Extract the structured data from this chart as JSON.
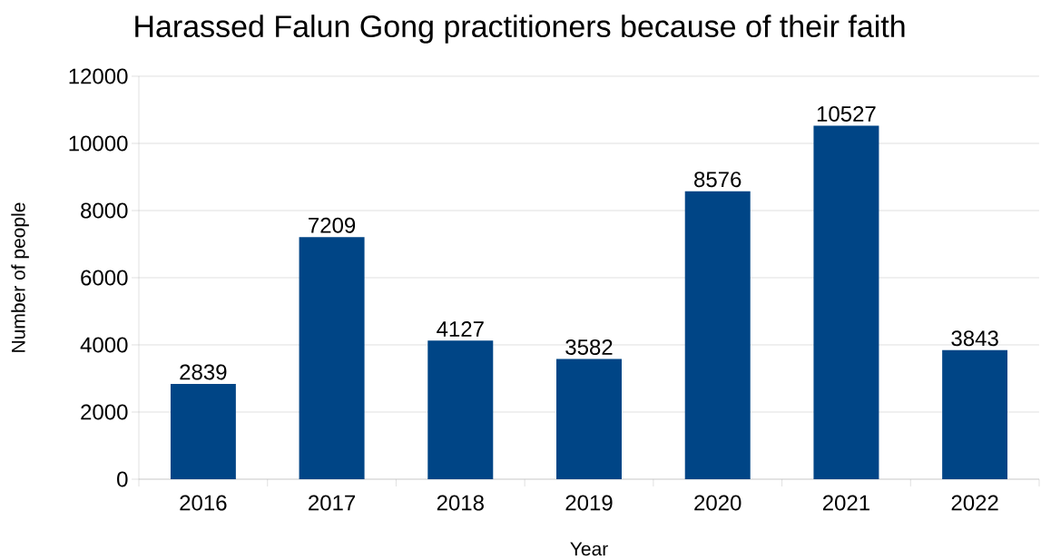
{
  "chart_data": {
    "type": "bar",
    "title": "Harassed Falun Gong practitioners because of their faith",
    "xlabel": "Year",
    "ylabel": "Number of people",
    "categories": [
      "2016",
      "2017",
      "2018",
      "2019",
      "2020",
      "2021",
      "2022"
    ],
    "values": [
      2839,
      7209,
      4127,
      3582,
      8576,
      10527,
      3843
    ],
    "color": "#004586",
    "data_labels": true,
    "grid": "y",
    "ylim": [
      0,
      12000
    ],
    "yticks": [
      0,
      2000,
      4000,
      6000,
      8000,
      10000,
      12000
    ]
  }
}
